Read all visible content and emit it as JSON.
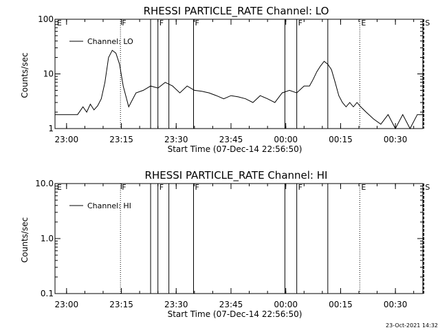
{
  "timestamp": "23-Oct-2021 14:32",
  "chart_data": [
    {
      "type": "line",
      "title": "RHESSI PARTICLE_RATE Channel: LO",
      "xlabel": "Start Time (07-Dec-14 22:56:50)",
      "ylabel": "Counts/sec",
      "yscale": "log",
      "xlim": [
        "22:56:50",
        "00:37:30"
      ],
      "ylim": [
        1,
        100
      ],
      "xticks": [
        "23:00",
        "23:15",
        "23:30",
        "23:45",
        "00:00",
        "00:15",
        "00:30"
      ],
      "yticks": [
        "1",
        "10",
        "100"
      ],
      "legend": {
        "position": "top-left"
      },
      "markers": [
        {
          "time": "22:57:00",
          "label": "E",
          "style": "none"
        },
        {
          "time": "23:14:45",
          "label": "F",
          "style": "dotted"
        },
        {
          "time": "23:23:00",
          "label": "",
          "style": "solid"
        },
        {
          "time": "23:25:00",
          "label": "F",
          "style": "solid"
        },
        {
          "time": "23:28:00",
          "label": "",
          "style": "solid"
        },
        {
          "time": "23:34:45",
          "label": "F",
          "style": "solid"
        },
        {
          "time": "23:59:45",
          "label": "",
          "style": "solid"
        },
        {
          "time": "00:03:00",
          "label": "F",
          "style": "solid"
        },
        {
          "time": "00:11:30",
          "label": "",
          "style": "solid"
        },
        {
          "time": "00:20:15",
          "label": "E",
          "style": "dotted"
        },
        {
          "time": "00:37:45",
          "label": "S",
          "style": "dashed"
        }
      ],
      "series": [
        {
          "name": "Channel: LO",
          "x": [
            "22:56:50",
            "23:03:00",
            "23:04:30",
            "23:05:30",
            "23:06:30",
            "23:07:30",
            "23:08:30",
            "23:09:30",
            "23:10:30",
            "23:11:30",
            "23:12:30",
            "23:13:30",
            "23:14:30",
            "23:15:30",
            "23:17:00",
            "23:19:00",
            "23:21:00",
            "23:23:00",
            "23:25:00",
            "23:27:00",
            "23:29:00",
            "23:31:00",
            "23:33:00",
            "23:35:00",
            "23:37:00",
            "23:39:00",
            "23:41:00",
            "23:43:00",
            "23:45:00",
            "23:47:00",
            "23:49:00",
            "23:51:00",
            "23:53:00",
            "23:55:00",
            "23:57:00",
            "23:59:00",
            "00:01:00",
            "00:03:00",
            "00:05:00",
            "00:06:30",
            "00:07:30",
            "00:08:30",
            "00:09:30",
            "00:10:30",
            "00:11:30",
            "00:12:30",
            "00:13:30",
            "00:14:30",
            "00:15:30",
            "00:16:30",
            "00:17:30",
            "00:18:30",
            "00:19:30",
            "00:20:30",
            "00:22:00",
            "00:24:00",
            "00:26:00",
            "00:28:00",
            "00:30:00",
            "00:32:00",
            "00:34:00",
            "00:36:00",
            "00:37:30"
          ],
          "y": [
            1.8,
            1.8,
            2.5,
            2.0,
            2.8,
            2.2,
            2.6,
            3.5,
            7.0,
            20,
            27,
            24,
            15,
            6,
            2.5,
            4.5,
            5.0,
            6.0,
            5.5,
            7.0,
            6.0,
            4.5,
            6.0,
            5.0,
            4.8,
            4.5,
            4.0,
            3.5,
            4.0,
            3.8,
            3.5,
            3.0,
            4.0,
            3.5,
            3.0,
            4.5,
            5.0,
            4.5,
            6.0,
            6.0,
            8.0,
            11,
            14,
            17,
            15,
            12,
            7.0,
            4.0,
            3.0,
            2.5,
            3.0,
            2.5,
            3.0,
            2.5,
            2.0,
            1.5,
            1.2,
            1.8,
            1.0,
            1.8,
            1.0,
            1.8,
            1.8
          ]
        }
      ]
    },
    {
      "type": "line",
      "title": "RHESSI PARTICLE_RATE Channel: HI",
      "xlabel": "Start Time (07-Dec-14 22:56:50)",
      "ylabel": "Counts/sec",
      "yscale": "log",
      "xlim": [
        "22:56:50",
        "00:37:30"
      ],
      "ylim": [
        0.1,
        10
      ],
      "xticks": [
        "23:00",
        "23:15",
        "23:30",
        "23:45",
        "00:00",
        "00:15",
        "00:30"
      ],
      "yticks": [
        "0.1",
        "1.0",
        "10.0"
      ],
      "legend": {
        "position": "top-left"
      },
      "markers": [
        {
          "time": "22:57:00",
          "label": "E",
          "style": "none"
        },
        {
          "time": "23:14:45",
          "label": "F",
          "style": "dotted"
        },
        {
          "time": "23:23:00",
          "label": "",
          "style": "solid"
        },
        {
          "time": "23:25:00",
          "label": "F",
          "style": "solid"
        },
        {
          "time": "23:28:00",
          "label": "",
          "style": "solid"
        },
        {
          "time": "23:34:45",
          "label": "F",
          "style": "solid"
        },
        {
          "time": "23:59:45",
          "label": "",
          "style": "solid"
        },
        {
          "time": "00:03:00",
          "label": "F",
          "style": "solid"
        },
        {
          "time": "00:11:30",
          "label": "",
          "style": "solid"
        },
        {
          "time": "00:20:15",
          "label": "E",
          "style": "dotted"
        },
        {
          "time": "00:37:45",
          "label": "S",
          "style": "dashed"
        }
      ],
      "series": [
        {
          "name": "Channel: HI",
          "x": [],
          "y": []
        }
      ]
    }
  ]
}
